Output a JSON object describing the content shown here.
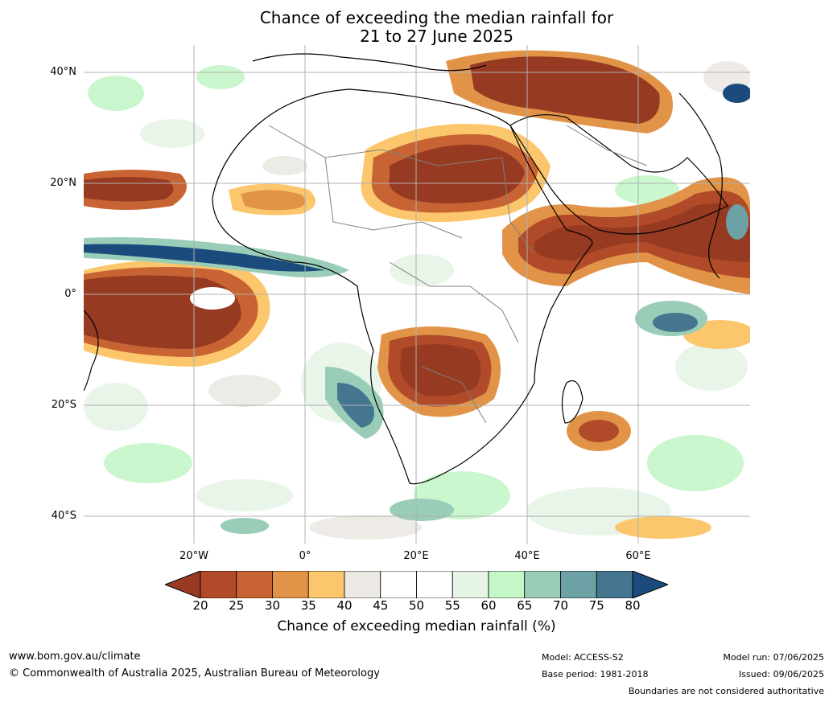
{
  "title_line1": "Chance of exceeding the median rainfall for",
  "title_line2": "21 to 27 June 2025",
  "lat_labels": [
    "40°N",
    "20°N",
    "0°",
    "20°S",
    "40°S"
  ],
  "lon_labels": [
    "20°W",
    "0°",
    "20°E",
    "40°E",
    "60°E"
  ],
  "colorbar": {
    "title": "Chance of exceeding median rainfall (%)",
    "ticks": [
      "20",
      "25",
      "30",
      "35",
      "40",
      "45",
      "50",
      "55",
      "60",
      "65",
      "70",
      "75",
      "80"
    ],
    "colors": [
      "#973a22",
      "#b04a28",
      "#c86433",
      "#e19448",
      "#fcc66c",
      "#ece9e4",
      "#ffffff",
      "#ffffff",
      "#e6f4e6",
      "#c4f6c8",
      "#99cdb7",
      "#6ca1a5",
      "#44768f",
      "#1a4b7c"
    ]
  },
  "footer": {
    "url": "www.bom.gov.au/climate",
    "copyright": "© Commonwealth of Australia 2025, Australian Bureau of Meteorology",
    "model": "Model: ACCESS-S2",
    "base_period": "Base period: 1981-2018",
    "model_run": "Model run: 07/06/2025",
    "issued": "Issued: 09/06/2025",
    "disclaimer": "Boundaries are not considered authoritative"
  }
}
